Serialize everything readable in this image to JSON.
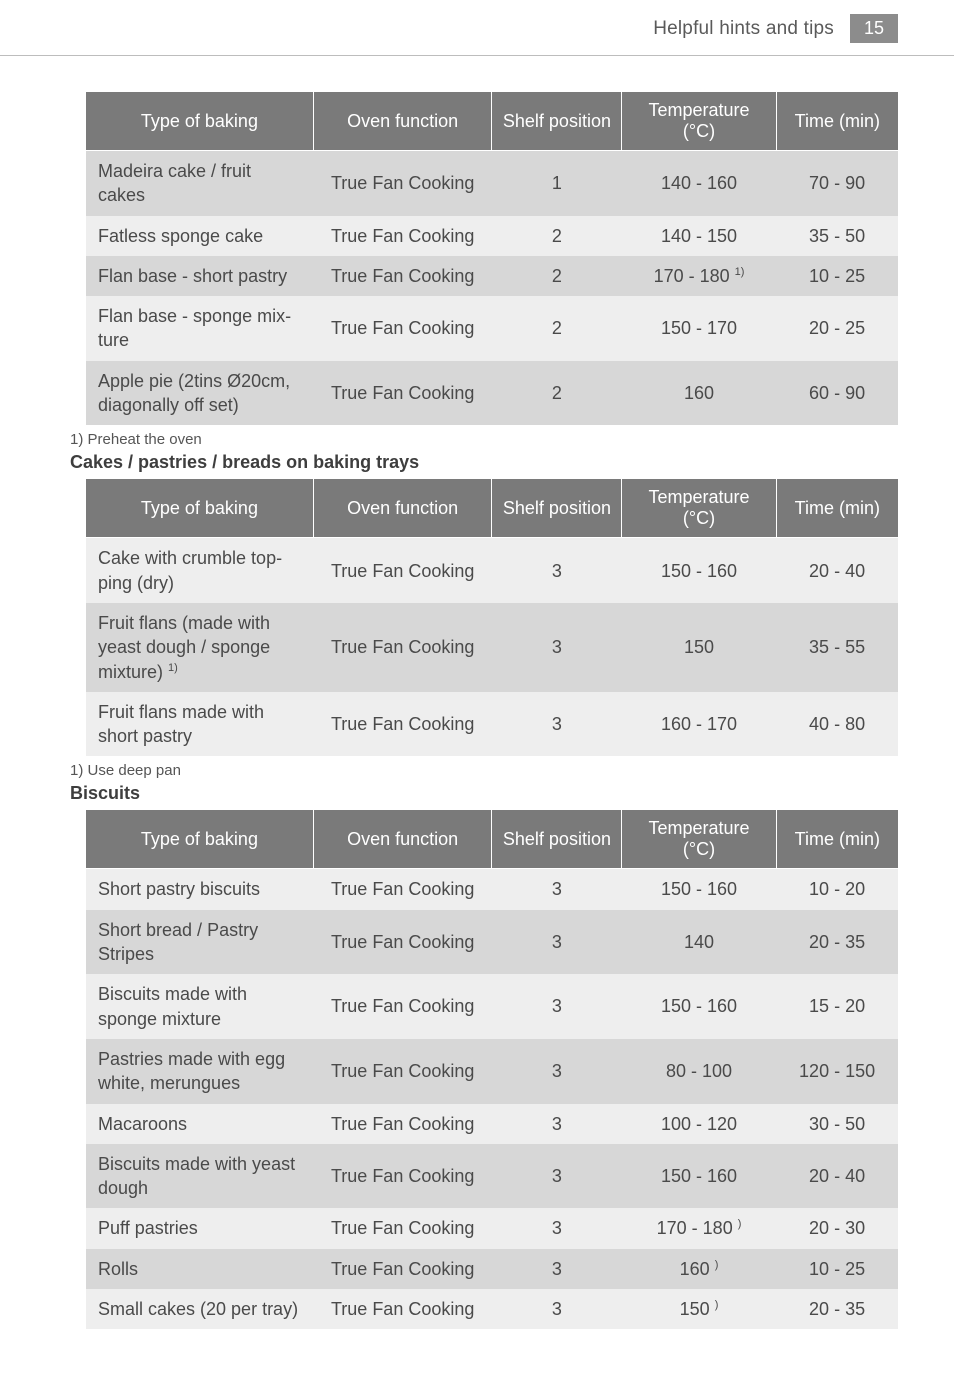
{
  "page": {
    "header_title": "Helpful hints and tips",
    "page_number": "15"
  },
  "columns": {
    "type": "Type of baking",
    "func": "Oven function",
    "shelf": "Shelf position",
    "temp": "Temperature (°C)",
    "time": "Time (min)"
  },
  "table1": {
    "rows": [
      {
        "type": "Madeira cake / fruit cakes",
        "func": "True Fan Cooking",
        "shelf": "1",
        "temp": "140 - 160",
        "time": "70 - 90"
      },
      {
        "type": "Fatless sponge cake",
        "func": "True Fan Cooking",
        "shelf": "2",
        "temp": "140 - 150",
        "time": "35 - 50"
      },
      {
        "type": "Flan base - short pastry",
        "func": "True Fan Cooking",
        "shelf": "2",
        "temp_val": "170 - 180",
        "temp_sup": "1)",
        "time": "10 - 25"
      },
      {
        "type": "Flan base - sponge mix-\nture",
        "func": "True Fan Cooking",
        "shelf": "2",
        "temp": "150 - 170",
        "time": "20 - 25"
      },
      {
        "type": "Apple pie (2tins Ø20cm, diagonally off set)",
        "func": "True Fan Cooking",
        "shelf": "2",
        "temp": "160",
        "time": "60 - 90"
      }
    ],
    "footnote": "1) Preheat the oven"
  },
  "section2_title": "Cakes / pastries / breads on baking trays",
  "table2": {
    "rows": [
      {
        "type": "Cake with crumble top-\nping (dry)",
        "func": "True Fan Cooking",
        "shelf": "3",
        "temp": "150 - 160",
        "time": "20 - 40"
      },
      {
        "type_line1": "Fruit flans (made with",
        "type_line2": "yeast dough / sponge",
        "type_line3_pre": "mixture)",
        "type_line3_sup": "1)",
        "func": "True Fan Cooking",
        "shelf": "3",
        "temp": "150",
        "time": "35 - 55"
      },
      {
        "type": "Fruit flans made with short pastry",
        "func": "True Fan Cooking",
        "shelf": "3",
        "temp": "160 - 170",
        "time": "40 - 80"
      }
    ],
    "footnote": "1) Use deep pan"
  },
  "section3_title": "Biscuits",
  "table3": {
    "rows": [
      {
        "type": "Short pastry biscuits",
        "func": "True Fan Cooking",
        "shelf": "3",
        "temp": "150 - 160",
        "time": "10 - 20"
      },
      {
        "type": "Short bread / Pastry Stripes",
        "func": "True Fan Cooking",
        "shelf": "3",
        "temp": "140",
        "time": "20 - 35"
      },
      {
        "type": "Biscuits made with sponge mixture",
        "func": "True Fan Cooking",
        "shelf": "3",
        "temp": "150 - 160",
        "time": "15 - 20"
      },
      {
        "type": "Pastries made with egg white, merungues",
        "func": "True Fan Cooking",
        "shelf": "3",
        "temp": "80 - 100",
        "time": "120 - 150"
      },
      {
        "type": "Macaroons",
        "func": "True Fan Cooking",
        "shelf": "3",
        "temp": "100 - 120",
        "time": "30 - 50"
      },
      {
        "type": "Biscuits made with yeast dough",
        "func": "True Fan Cooking",
        "shelf": "3",
        "temp": "150 - 160",
        "time": "20 - 40"
      },
      {
        "type": "Puff pastries",
        "func": "True Fan Cooking",
        "shelf": "3",
        "temp_val": "170 - 180",
        "temp_sup": ")",
        "time": "20 - 30"
      },
      {
        "type": "Rolls",
        "func": "True Fan Cooking",
        "shelf": "3",
        "temp_val": "160",
        "temp_sup": ")",
        "time": "10 - 25"
      },
      {
        "type": "Small cakes (20 per tray)",
        "func": "True Fan Cooking",
        "shelf": "3",
        "temp_val": "150",
        "temp_sup": ")",
        "time": "20 - 35"
      }
    ]
  },
  "style": {
    "header_bg": "#7a7a7a",
    "row_light": "#eeeeee",
    "row_dark": "#d7d7d7",
    "page_num_bg": "#8c8c8c",
    "text_color": "#4a4a4a",
    "rule_color": "#bdbdbd",
    "font_size_body": 18,
    "font_size_footnote": 15
  }
}
